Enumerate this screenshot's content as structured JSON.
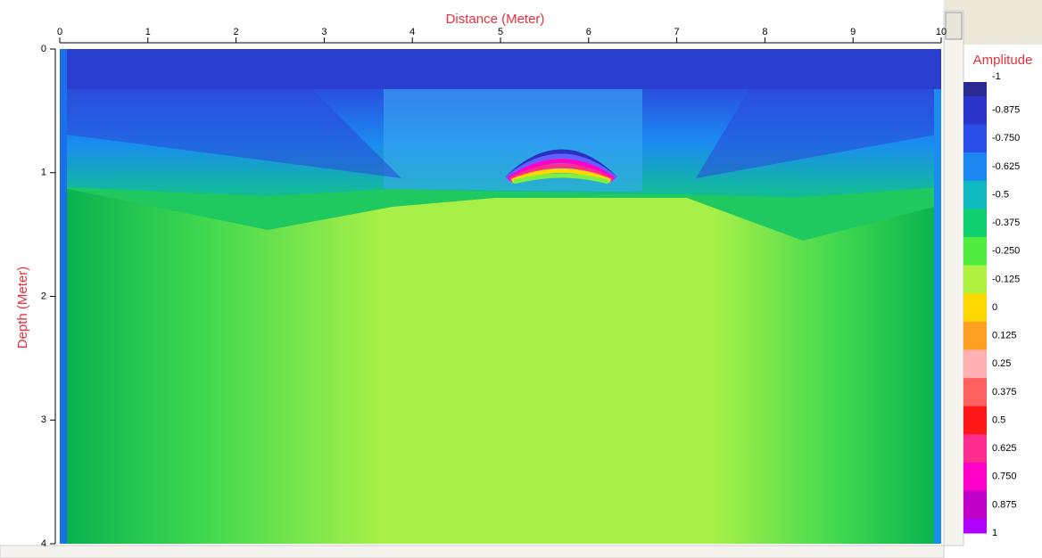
{
  "chart_data": {
    "type": "radargram",
    "x_label": "Distance (Meter)",
    "y_label": "Depth (Meter)",
    "colorbar_label": "Amplitude",
    "xlim": [
      0,
      10
    ],
    "xticks": [
      0,
      1,
      2,
      3,
      4,
      5,
      6,
      7,
      8,
      9,
      10
    ],
    "ylim": [
      0,
      4
    ],
    "yticks": [
      0,
      1,
      2,
      3,
      4
    ],
    "clim": [
      -1,
      1
    ],
    "cticks": [
      -1,
      {
        "value": -0.875,
        "label": "-0.875"
      },
      {
        "value": -0.75,
        "label": "-0.750"
      },
      {
        "value": -0.625,
        "label": "-0.625"
      },
      -0.5,
      {
        "value": -0.375,
        "label": "-0.375"
      },
      {
        "value": -0.25,
        "label": "-0.250"
      },
      {
        "value": -0.125,
        "label": "-0.125"
      },
      0,
      {
        "value": 0.125,
        "label": "0.125"
      },
      0.25,
      {
        "value": 0.375,
        "label": "0.375"
      },
      0.5,
      {
        "value": 0.625,
        "label": "0.625"
      },
      {
        "value": 0.75,
        "label": "0.750"
      },
      {
        "value": 0.875,
        "label": "0.875"
      },
      1
    ],
    "colors": [
      "#2a2a90",
      "#2a34c8",
      "#2a4ee8",
      "#1a86f0",
      "#10b8c0",
      "#10d070",
      "#50ec40",
      "#b0f040",
      "#ffd800",
      "#ffa020",
      "#ffb0b0",
      "#ff6060",
      "#ff1818",
      "#ff2c90",
      "#ff00c8",
      "#c000c8",
      "#b000ff"
    ]
  }
}
